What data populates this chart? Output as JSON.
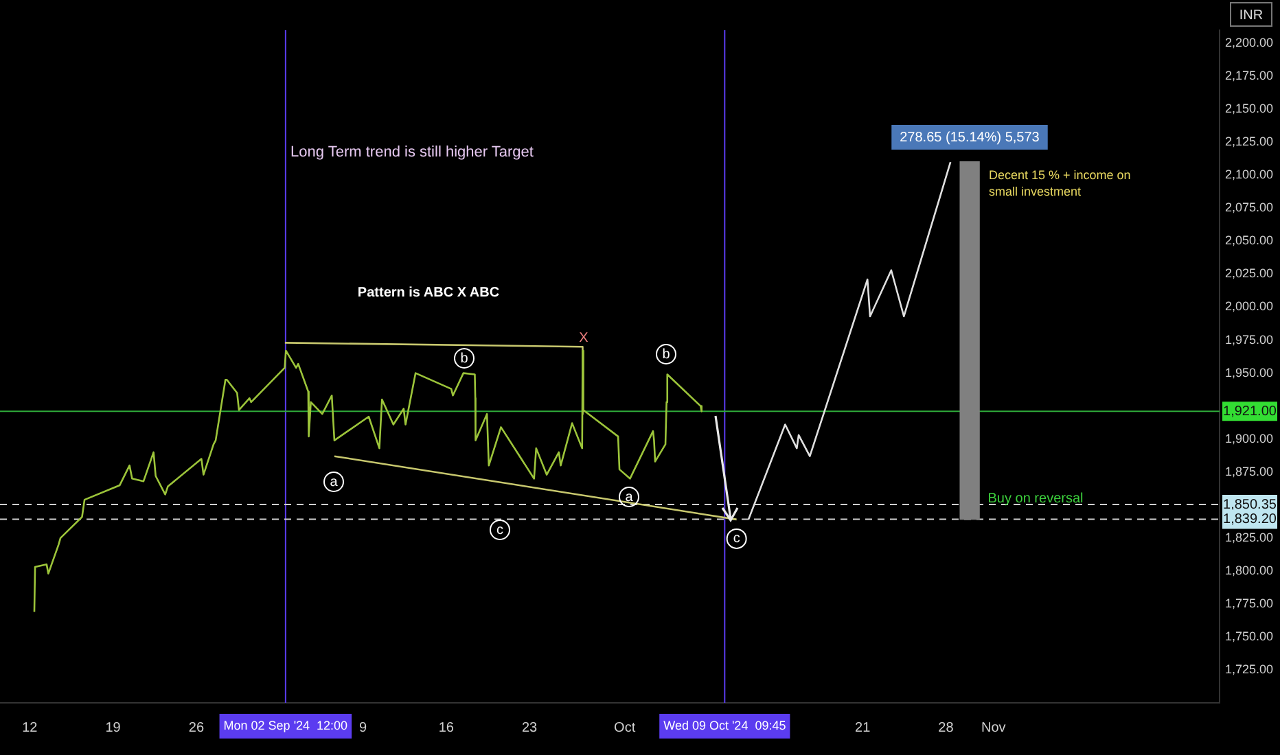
{
  "chart_data": {
    "type": "line",
    "ylabel": "INR",
    "xlim": [
      "2024-08-09T12:00",
      "2024-11-20"
    ],
    "xticks": [
      {
        "value": "2024-08-12",
        "label": "12"
      },
      {
        "value": "2024-08-19",
        "label": "19"
      },
      {
        "value": "2024-08-26",
        "label": "26"
      },
      {
        "value": "2024-09-09",
        "label": "9"
      },
      {
        "value": "2024-09-16",
        "label": "16"
      },
      {
        "value": "2024-09-23",
        "label": "23"
      },
      {
        "value": "2024-10-01",
        "label": "Oct"
      },
      {
        "value": "2024-10-21",
        "label": "21"
      },
      {
        "value": "2024-10-28",
        "label": "28"
      },
      {
        "value": "2024-11-01",
        "label": "Nov"
      }
    ],
    "ylim": [
      1700,
      2210
    ],
    "yticks": [
      {
        "value": 1725,
        "label": "1,725.00"
      },
      {
        "value": 1750,
        "label": "1,750.00"
      },
      {
        "value": 1775,
        "label": "1,775.00"
      },
      {
        "value": 1800,
        "label": "1,800.00"
      },
      {
        "value": 1825,
        "label": "1,825.00"
      },
      {
        "value": 1875,
        "label": "1,875.00"
      },
      {
        "value": 1900,
        "label": "1,900.00"
      },
      {
        "value": 1950,
        "label": "1,950.00"
      },
      {
        "value": 1975,
        "label": "1,975.00"
      },
      {
        "value": 2000,
        "label": "2,000.00"
      },
      {
        "value": 2025,
        "label": "2,025.00"
      },
      {
        "value": 2050,
        "label": "2,050.00"
      },
      {
        "value": 2075,
        "label": "2,075.00"
      },
      {
        "value": 2100,
        "label": "2,100.00"
      },
      {
        "value": 2125,
        "label": "2,125.00"
      },
      {
        "value": 2150,
        "label": "2,150.00"
      },
      {
        "value": 2175,
        "label": "2,175.00"
      },
      {
        "value": 2200,
        "label": "2,200.00"
      }
    ],
    "grid": false,
    "legend": false,
    "series": [
      {
        "color": "#9cc43a",
        "x": [
          "2024-08-12T09:15",
          "2024-08-12T10:45",
          "2024-08-13T10:00",
          "2024-08-13T13:30",
          "2024-08-14T10:15",
          "2024-08-14T14:00",
          "2024-08-16T09:30",
          "2024-08-16T14:30",
          "2024-08-19T13:30",
          "2024-08-20T09:15",
          "2024-08-20T14:30",
          "2024-08-21T13:30",
          "2024-08-22T09:45",
          "2024-08-22T14:00",
          "2024-08-23T09:15",
          "2024-08-23T14:30",
          "2024-08-26T10:15",
          "2024-08-26T14:30",
          "2024-08-27T10:45",
          "2024-08-27T15:00",
          "2024-08-28T10:45",
          "2024-08-28T13:30",
          "2024-08-29T10:15",
          "2024-08-29T14:00",
          "2024-08-30T11:15",
          "2024-08-30T14:30",
          "2024-09-02T10:15",
          "2024-09-02T12:45",
          "2024-09-03T09:15",
          "2024-09-03T13:30",
          "2024-09-04T09:45",
          "2024-09-04T10:45",
          "2024-09-04T15:00",
          "2024-09-05T14:00",
          "2024-09-06T09:15",
          "2024-09-06T14:30",
          "2024-09-09T11:45",
          "2024-09-10T09:15",
          "2024-09-10T14:30",
          "2024-09-11T13:30",
          "2024-09-12T10:15",
          "2024-09-12T14:00",
          "2024-09-13T10:15",
          "2024-09-16T10:15",
          "2024-09-16T13:30",
          "2024-09-17T10:45",
          "2024-09-18T09:45",
          "2024-09-18T10:45",
          "2024-09-18T11:15",
          "2024-09-19T10:15",
          "2024-09-19T14:00",
          "2024-09-20T14:30",
          "2024-09-23T09:15",
          "2024-09-23T13:30",
          "2024-09-24T10:45",
          "2024-09-25T11:15",
          "2024-09-25T15:00",
          "2024-09-26T14:00",
          "2024-09-27T10:15",
          "2024-09-27T11:15",
          "2024-09-27T12:45",
          "2024-09-30T10:45",
          "2024-09-30T13:30",
          "2024-10-01T10:45",
          "2024-10-03T09:15",
          "2024-10-03T11:15",
          "2024-10-03T13:30",
          "2024-10-04T10:15",
          "2024-10-04T12:30",
          "2024-10-04T14:00",
          "2024-10-07T09:15",
          "2024-10-07T11:15"
        ],
        "values": [
          1769,
          1803,
          1805,
          1798,
          1820,
          1825,
          1841,
          1854,
          1865,
          1880,
          1870,
          1868,
          1890,
          1872,
          1858,
          1864,
          1885,
          1873,
          1896,
          1899,
          1945,
          1945,
          1935,
          1922,
          1931,
          1928,
          1954,
          1967,
          1954,
          1957,
          1936,
          1902,
          1928,
          1919,
          1933,
          1899,
          1917,
          1893,
          1930,
          1911,
          1923,
          1911,
          1950,
          1938,
          1933,
          1950,
          1949,
          1931,
          1899,
          1919,
          1880,
          1909,
          1870,
          1893,
          1873,
          1890,
          1880,
          1912,
          1893,
          1967,
          1922,
          1902,
          1877,
          1870,
          1906,
          1899,
          1883,
          1896,
          1928,
          1949,
          1925,
          1921
        ]
      },
      {
        "type": "line",
        "color": "#e0e0e0",
        "x": [
          "2024-10-11T09:45",
          "2024-10-14T11:45",
          "2024-10-15T11:15",
          "2024-10-15T15:00",
          "2024-10-16T13:30",
          "2024-10-21T09:45",
          "2024-10-21T15:00",
          "2024-10-23T09:45",
          "2024-10-24T11:15",
          "2024-10-28T09:15"
        ],
        "values": [
          1839,
          1911,
          1893,
          1903,
          1887,
          2021,
          1993,
          2028,
          1993,
          2110
        ]
      },
      {
        "type": "line",
        "color": "#c8c86e",
        "x": [
          "2024-09-02T10:45",
          "2024-09-27T11:15",
          "2024-09-27T11:15"
        ],
        "values": [
          1973,
          1970,
          1919
        ]
      },
      {
        "type": "line",
        "color": "#c8c86e",
        "x": [
          "2024-09-06T14:30",
          "2024-10-10T09:45"
        ],
        "values": [
          1887,
          1839
        ]
      },
      {
        "type": "bar",
        "color": "#808080",
        "x": [
          "2024-10-30"
        ],
        "base": [
          1839.2
        ],
        "values": [
          271
        ]
      }
    ],
    "ref_lines": [
      {
        "axis": "x",
        "value": "2024-09-02T12:00",
        "label": "Mon 02 Sep '24  12:00",
        "color": "#5b3cf0"
      },
      {
        "axis": "x",
        "value": "2024-10-09T09:45",
        "label": "Wed 09 Oct '24  09:45",
        "color": "#5b3cf0"
      },
      {
        "axis": "y",
        "value": 1921,
        "label": "1,921.00",
        "color": "#2eaa3a"
      },
      {
        "axis": "y",
        "value": 1850.35,
        "label": "1,850.35",
        "color": "#d0d0d0",
        "line_style": "dashed"
      },
      {
        "axis": "y",
        "value": 1839.2,
        "label": "1,839.20",
        "color": "#d0d0d0",
        "line_style": "dashed"
      }
    ],
    "annotations": [
      "Long Term trend is still higher Target",
      "Pattern is ABC X ABC",
      "a",
      "b",
      "c",
      "X",
      "a",
      "b",
      {
        "text": "c",
        "x": "2024-10-10T09:45",
        "y": 1839
      },
      "278.65 (15.14%) 5,573",
      "Decent 15 % + income on small investment",
      "Buy on reversal"
    ]
  }
}
